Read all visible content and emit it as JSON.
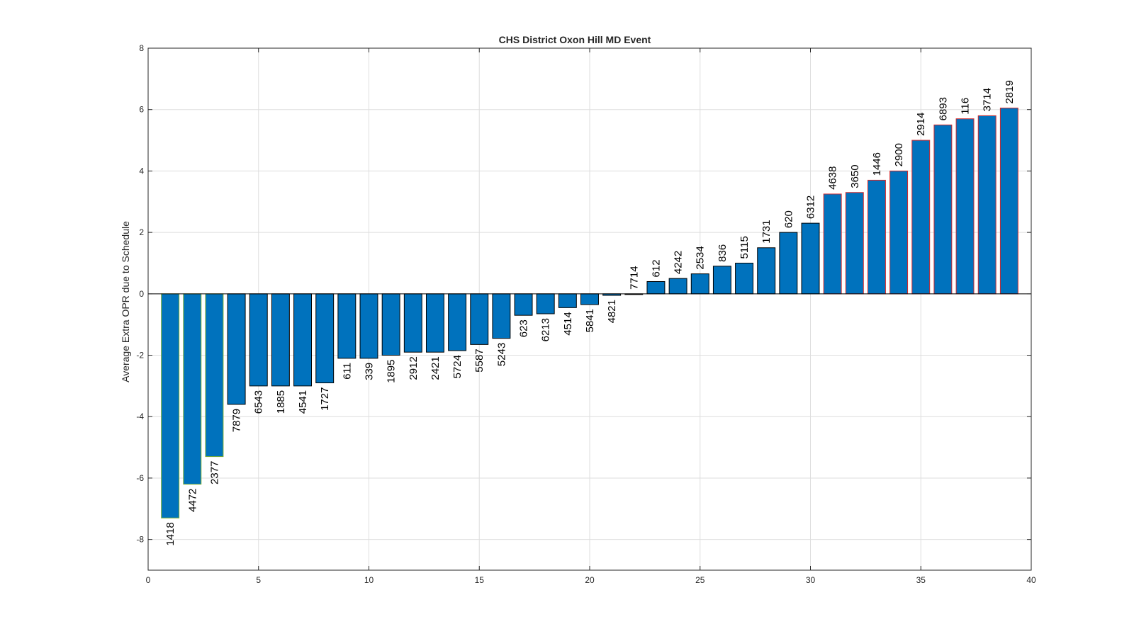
{
  "chart_data": {
    "type": "bar",
    "title": "CHS District Oxon Hill MD Event",
    "xlabel": "",
    "ylabel": "Average Extra OPR due to Schedule",
    "xlim": [
      0,
      40
    ],
    "ylim": [
      -9,
      8
    ],
    "xticks": [
      "0",
      "5",
      "10",
      "15",
      "20",
      "25",
      "30",
      "35",
      "40"
    ],
    "yticks": [
      "-8",
      "-6",
      "-4",
      "-2",
      "0",
      "2",
      "4",
      "6",
      "8"
    ],
    "grid": true,
    "legend": "none",
    "bar_color": "#0072bd",
    "edge_colors": {
      "negative_low": "#77ac30",
      "negative": "#000000",
      "positive": "#000000",
      "positive_high": "#d62728"
    },
    "x": [
      1,
      2,
      3,
      4,
      5,
      6,
      7,
      8,
      9,
      10,
      11,
      12,
      13,
      14,
      15,
      16,
      17,
      18,
      19,
      20,
      21,
      22,
      23,
      24,
      25,
      26,
      27,
      28,
      29,
      30,
      31,
      32,
      33,
      34,
      35,
      36,
      37,
      38,
      39
    ],
    "teams": [
      "1418",
      "4472",
      "2377",
      "7879",
      "6543",
      "1885",
      "4541",
      "1727",
      "611",
      "339",
      "1895",
      "2912",
      "2421",
      "5724",
      "5587",
      "5243",
      "623",
      "6213",
      "4514",
      "5841",
      "4821",
      "7714",
      "612",
      "4242",
      "2534",
      "836",
      "5115",
      "1731",
      "620",
      "6312",
      "4638",
      "3650",
      "1446",
      "2900",
      "2914",
      "6893",
      "116",
      "3714",
      "2819"
    ],
    "values": [
      -7.3,
      -6.2,
      -5.3,
      -3.6,
      -3.0,
      -3.0,
      -3.0,
      -2.9,
      -2.1,
      -2.1,
      -2.0,
      -1.9,
      -1.9,
      -1.85,
      -1.65,
      -1.45,
      -0.7,
      -0.65,
      -0.45,
      -0.35,
      -0.05,
      0.0,
      0.4,
      0.5,
      0.65,
      0.9,
      1.0,
      1.5,
      2.0,
      2.3,
      3.25,
      3.3,
      3.7,
      4.0,
      5.0,
      5.5,
      5.7,
      5.8,
      6.05
    ]
  }
}
